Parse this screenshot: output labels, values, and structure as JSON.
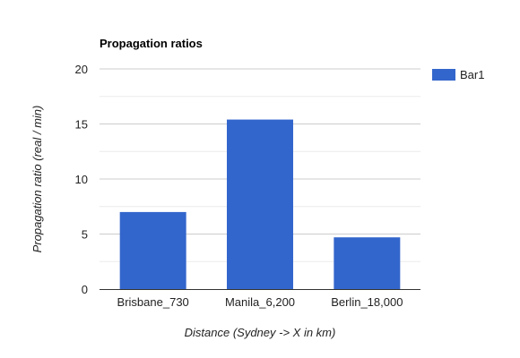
{
  "chart_data": {
    "type": "bar",
    "title": "Propagation ratios",
    "xlabel": "Distance (Sydney -> X in km)",
    "ylabel": "Propagation ratio (real / min)",
    "categories": [
      "Brisbane_730",
      "Manila_6,200",
      "Berlin_18,000"
    ],
    "series": [
      {
        "name": "Bar1",
        "values": [
          7.0,
          15.4,
          4.7
        ],
        "color": "#3366cc"
      }
    ],
    "ylim": [
      0,
      20
    ],
    "yticks": [
      0,
      5,
      10,
      15,
      20
    ],
    "grid": true,
    "legend_position": "right"
  }
}
